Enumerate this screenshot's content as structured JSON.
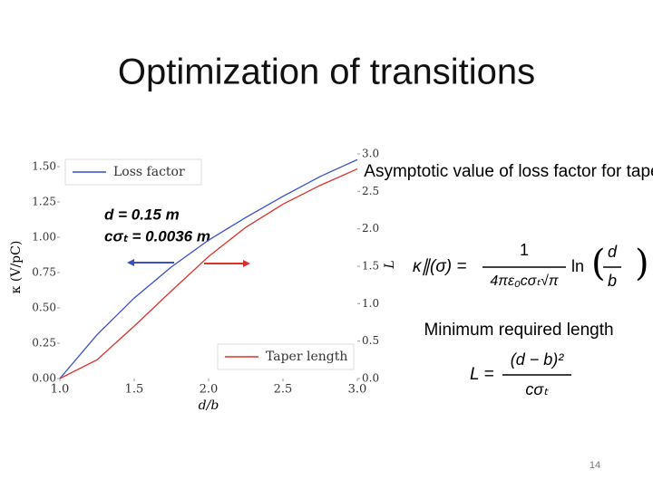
{
  "slide": {
    "title": "Optimization of transitions",
    "page_number": "14",
    "notes": [
      {
        "heading": "Asymptotic value of loss factor for taper-out",
        "formula": {
          "lhs": "κ∥(σ) =",
          "numerator": "1",
          "denominator": "4πε₀cσₜ√π",
          "rest": "ln",
          "num2": "d",
          "den2": "b"
        }
      },
      {
        "heading": "Minimum required length",
        "formula": {
          "lhs": "L =",
          "numerator": "(d − b)²",
          "denominator": "cσₜ"
        }
      }
    ]
  },
  "chart_data": {
    "type": "line",
    "xlabel": "d/b",
    "ylabel": "κ  (V/pC)",
    "y2label": "L",
    "annotations": [
      "d = 0.15 m",
      "cσₜ = 0.0036 m"
    ],
    "x": [
      1.0,
      1.25,
      1.5,
      1.75,
      2.0,
      2.25,
      2.5,
      2.75,
      3.0
    ],
    "series": [
      {
        "name": "Loss factor",
        "color": "#3a4fc4",
        "legend": "upper left",
        "values": [
          0,
          0.31,
          0.57,
          0.79,
          0.98,
          1.14,
          1.29,
          1.43,
          1.55
        ]
      },
      {
        "name": "Taper length",
        "color": "#d9342b",
        "legend": "lower right",
        "axis": "y2",
        "values": [
          0,
          0.25,
          0.7,
          1.17,
          1.63,
          2.02,
          2.33,
          2.58,
          2.8
        ]
      }
    ],
    "xlim": [
      1.0,
      3.0
    ],
    "ylim": [
      0,
      1.59
    ],
    "y2lim": [
      0,
      3.0
    ],
    "xticks": [
      {
        "value": 1,
        "label": "1.0"
      },
      1.5,
      {
        "value": 2,
        "label": "2.0"
      },
      2.5,
      {
        "value": 3,
        "label": "3.0"
      }
    ],
    "yticks": [
      {
        "value": 0,
        "label": "0.00"
      },
      0.25,
      {
        "value": 0.5,
        "label": "0.50"
      },
      0.75,
      {
        "value": 1,
        "label": "1.00"
      },
      1.25,
      {
        "value": 1.5,
        "label": "1.50"
      }
    ],
    "y2ticks": [
      {
        "value": 0,
        "label": "0.0"
      },
      0.5,
      {
        "value": 1,
        "label": "1.0"
      },
      1.5,
      {
        "value": 2,
        "label": "2.0"
      },
      2.5,
      {
        "value": 3,
        "label": "3.0"
      }
    ]
  }
}
